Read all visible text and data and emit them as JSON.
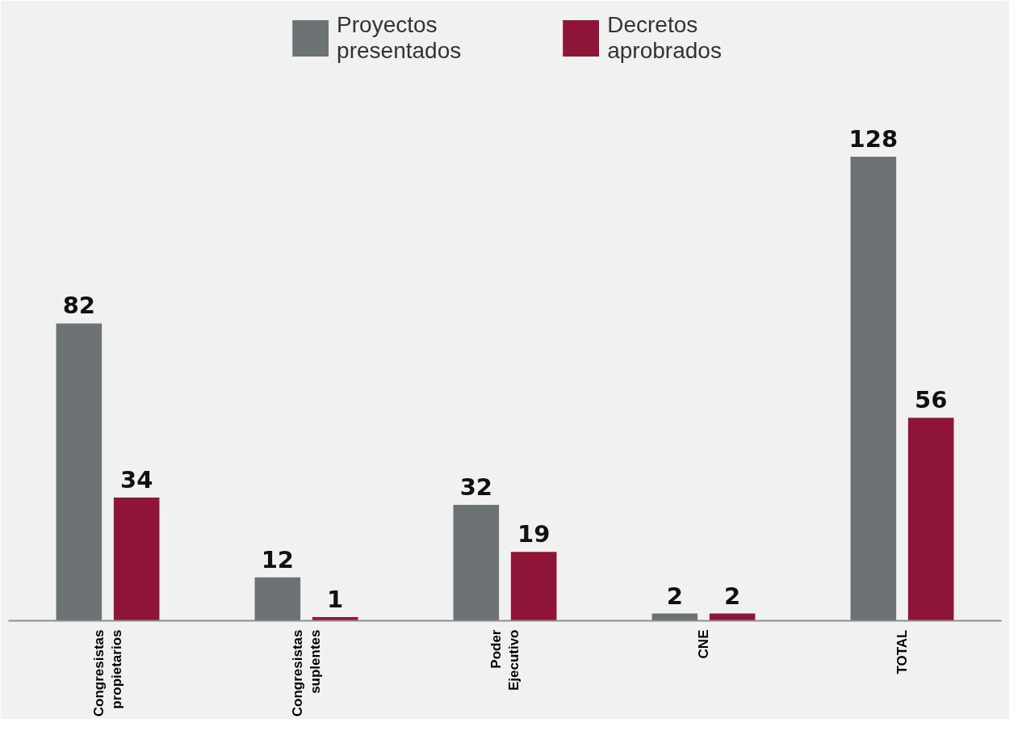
{
  "chart_data": {
    "type": "bar",
    "categories": [
      "Congresistas propietarios",
      "Congresistas suplentes",
      "Poder Ejecutivo",
      "CNE",
      "TOTAL"
    ],
    "series": [
      {
        "name": "Proyectos presentados",
        "color": "#6d7375",
        "values": [
          82,
          12,
          32,
          2,
          128
        ]
      },
      {
        "name": "Decretos aprobrados",
        "color": "#8f1538",
        "values": [
          34,
          1,
          19,
          2,
          56
        ]
      }
    ],
    "ylim": [
      0,
      170
    ],
    "tick_labels": "x",
    "data_labels": true,
    "legend": "top",
    "grid": false
  }
}
